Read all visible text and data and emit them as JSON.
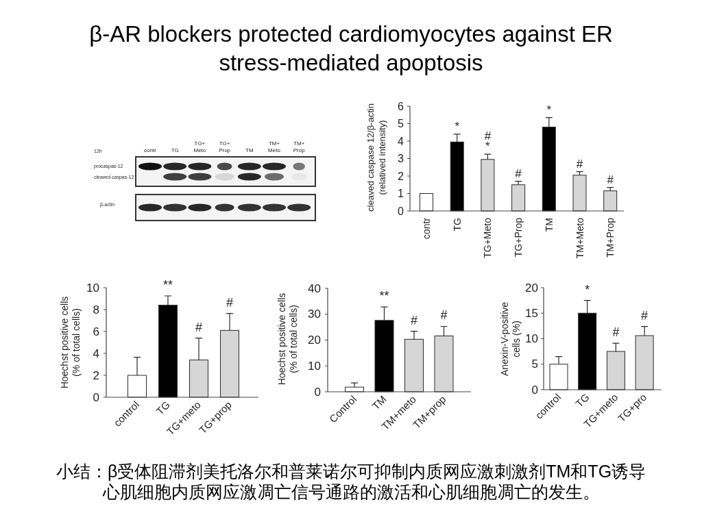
{
  "chart_data": [
    {
      "type": "other",
      "title": "β-AR blockers protected cardiomyocytes against ER stress-mediated apoptosis",
      "annotations": [
        "小结：β受体阻滞剂美托洛尔和普莱诺尔可抑制内质网应激刺激剂TM和TG诱导心肌细胞内质网应激凋亡信号通路的激活和心肌细胞凋亡的发生。"
      ]
    },
    {
      "type": "other",
      "categories": [
        "contr",
        "TG",
        "TG+\nMeto",
        "TG+\nProp",
        "TM",
        "TM+\nMeto",
        "TM+\nProp"
      ],
      "annotations": [
        "12h",
        "procaspas-12",
        "cleaved caspas-12",
        "β-actin"
      ]
    },
    {
      "type": "bar",
      "ylabel": "cleaved caspase 12/β-actin\n(relatived intensity)",
      "categories": [
        "contr",
        "TG",
        "TG+Meto",
        "TG+Prop",
        "TM",
        "TM+Meto",
        "TM+Prop"
      ],
      "values": [
        1,
        3.95,
        2.95,
        1.5,
        4.8,
        2.05,
        1.15
      ],
      "colors": [
        "#ffffff",
        "#000000",
        "#d6d6d6",
        "#d6d6d6",
        "#000000",
        "#d6d6d6",
        "#d6d6d6"
      ],
      "errors": [
        null,
        [
          3.95,
          4.4
        ],
        [
          2.95,
          3.25
        ],
        [
          1.5,
          1.7
        ],
        [
          4.8,
          5.35
        ],
        [
          2.05,
          2.25
        ],
        [
          1.15,
          1.35
        ]
      ],
      "ylim": [
        0,
        6
      ],
      "yticks": [
        0,
        1,
        2,
        3,
        4,
        5,
        6
      ],
      "annotations": [
        "*",
        "*",
        "#",
        "#",
        "*",
        "#",
        "#"
      ]
    },
    {
      "type": "bar",
      "ylabel": "Hoechst positive cells\n(% of total cells)",
      "categories": [
        "control",
        "TG",
        "TG+meto",
        "TG+prop"
      ],
      "values": [
        2,
        8.4,
        3.4,
        6.1
      ],
      "colors": [
        "#ffffff",
        "#000000",
        "#d6d6d6",
        "#d6d6d6"
      ],
      "errors": [
        [
          2,
          3.65
        ],
        [
          8.4,
          9.25
        ],
        [
          3.4,
          5.4
        ],
        [
          6.1,
          7.65
        ]
      ],
      "ylim": [
        0,
        10
      ],
      "yticks": [
        0,
        2,
        4,
        6,
        8,
        10
      ],
      "annotations": [
        "**",
        "#",
        "#"
      ]
    },
    {
      "type": "bar",
      "ylabel": "Hoechst positive cells\n(% of total cells)",
      "categories": [
        "Control",
        "TM",
        "TM+meto",
        "TM+prop"
      ],
      "values": [
        1.8,
        27.6,
        20.3,
        21.6
      ],
      "colors": [
        "#ffffff",
        "#000000",
        "#d6d6d6",
        "#d6d6d6"
      ],
      "errors": [
        [
          1.8,
          3.4
        ],
        [
          27.6,
          32.8
        ],
        [
          20.3,
          23.4
        ],
        [
          21.6,
          25.3
        ]
      ],
      "ylim": [
        0,
        40
      ],
      "yticks": [
        0,
        10,
        20,
        30,
        40
      ],
      "annotations": [
        "**",
        "#",
        "#"
      ]
    },
    {
      "type": "bar",
      "ylabel": "Anexin-V-positive\ncells (%)",
      "categories": [
        "control",
        "TG",
        "TG+meto",
        "TG+pro"
      ],
      "values": [
        5,
        15,
        7.5,
        10.6
      ],
      "colors": [
        "#ffffff",
        "#000000",
        "#d6d6d6",
        "#d6d6d6"
      ],
      "errors": [
        [
          5,
          6.5
        ],
        [
          15,
          17.5
        ],
        [
          7.5,
          9.1
        ],
        [
          10.6,
          12.4
        ]
      ],
      "ylim": [
        0,
        20
      ],
      "yticks": [
        0,
        5,
        10,
        15,
        20
      ],
      "annotations": [
        "*",
        "#",
        "#"
      ]
    }
  ]
}
